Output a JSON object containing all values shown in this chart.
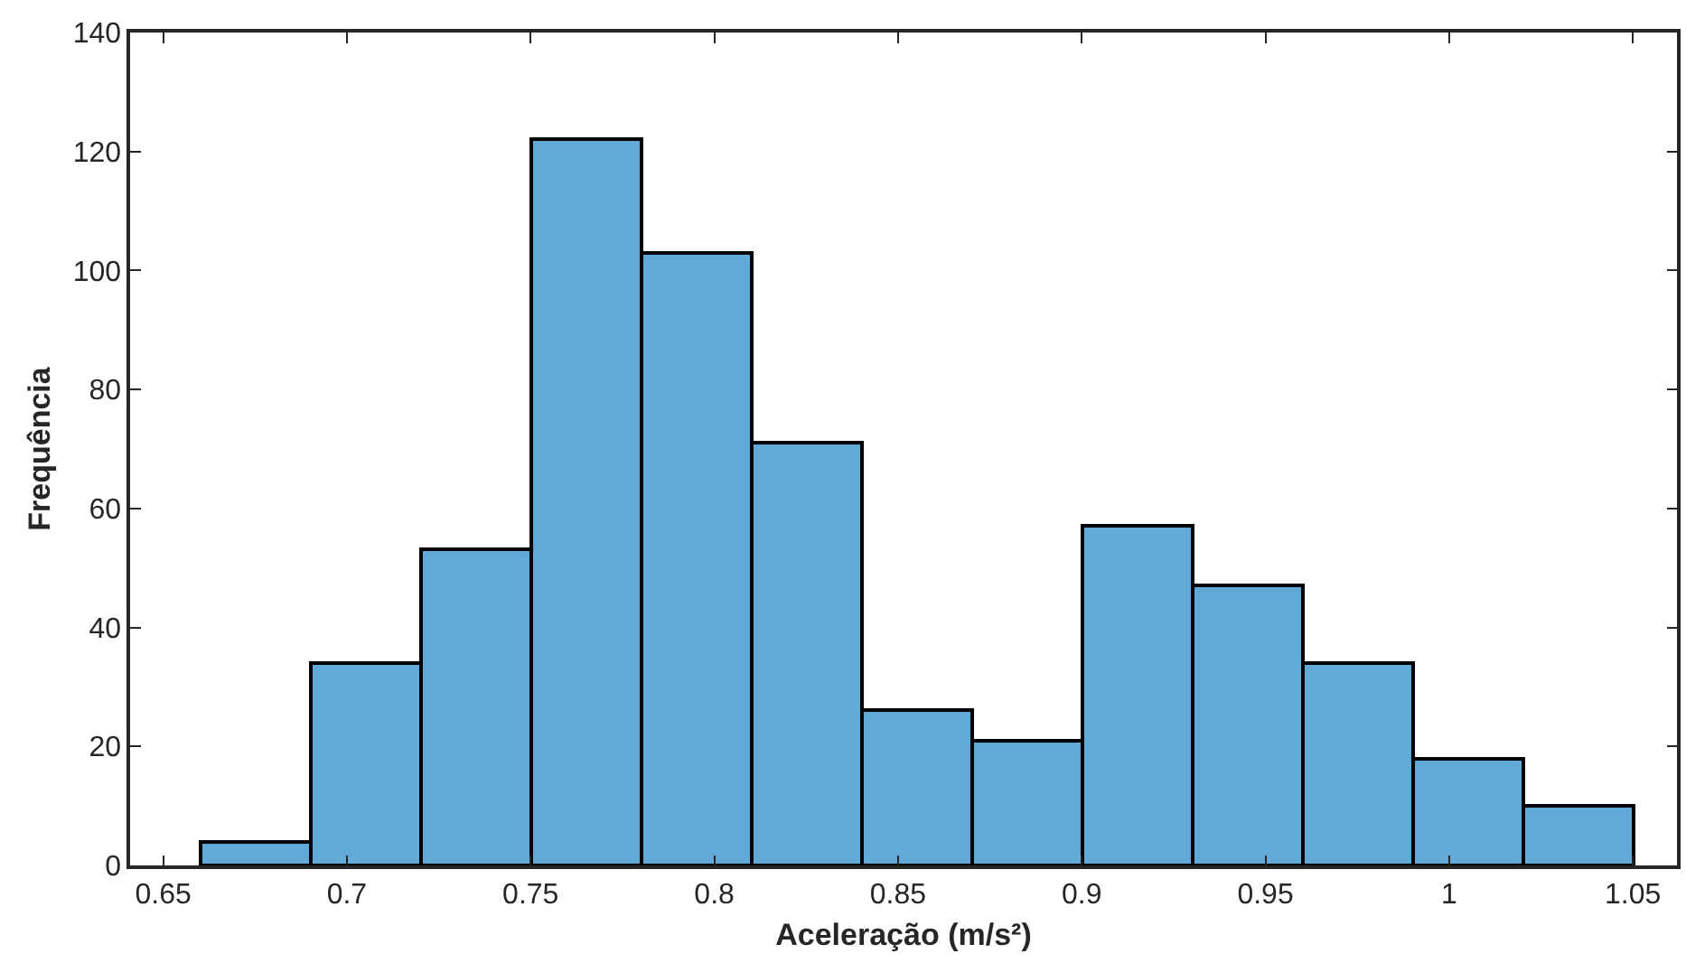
{
  "chart_data": {
    "type": "histogram",
    "xlabel": "Aceleração (m/s²)",
    "ylabel": "Frequência",
    "bins": [
      0.66,
      0.69,
      0.72,
      0.75,
      0.78,
      0.81,
      0.84,
      0.87,
      0.9,
      0.93,
      0.96,
      0.99,
      1.02,
      1.05
    ],
    "values": [
      4,
      34,
      53,
      122,
      103,
      71,
      26,
      21,
      57,
      47,
      34,
      18,
      10
    ],
    "color": "#62a8d8",
    "xlim": [
      0.641,
      1.062
    ],
    "xticks": [
      0.65,
      0.7,
      0.75,
      0.8,
      0.85,
      0.9,
      0.95,
      1,
      1.05
    ],
    "ylim": [
      0,
      140
    ],
    "yticks": [
      0,
      20,
      40,
      60,
      80,
      100,
      120,
      140
    ]
  }
}
